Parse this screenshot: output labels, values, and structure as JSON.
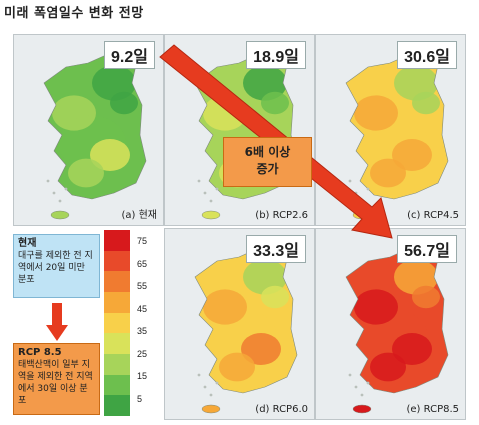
{
  "title": "미래 폭염일수 변화 전망",
  "panels": [
    {
      "days": "9.2일",
      "caption": "(a) 현재",
      "level": 0.15
    },
    {
      "days": "18.9일",
      "caption": "(b) RCP2.6",
      "level": 0.3
    },
    {
      "days": "30.6일",
      "caption": "(c) RCP4.5",
      "level": 0.5
    },
    {
      "days": "33.3일",
      "caption": "(d) RCP6.0",
      "level": 0.55
    },
    {
      "days": "56.7일",
      "caption": "(e) RCP8.5",
      "level": 0.9
    }
  ],
  "callout": {
    "line1": "6배 이상",
    "line2": "증가"
  },
  "current_box": {
    "heading": "현재",
    "text": "대구를 제외한 전 지역에서 20일 미만 분포"
  },
  "rcp_box": {
    "heading": "RCP 8.5",
    "text": "태백산맥이 일부 지역을 제외한 전 지역에서 30일 이상 분포"
  },
  "legend": {
    "labels": [
      "75",
      "65",
      "55",
      "45",
      "35",
      "25",
      "15",
      "5"
    ],
    "colors": [
      "#d7191c",
      "#e84a2a",
      "#f07b30",
      "#f6a838",
      "#f8d04a",
      "#d9e25a",
      "#a7d45a",
      "#6dbf4e",
      "#3fa444"
    ]
  },
  "colors": {
    "arrow": "#e63b1f",
    "callout": "#f39a4a",
    "current_box": "#bfe3f5"
  }
}
